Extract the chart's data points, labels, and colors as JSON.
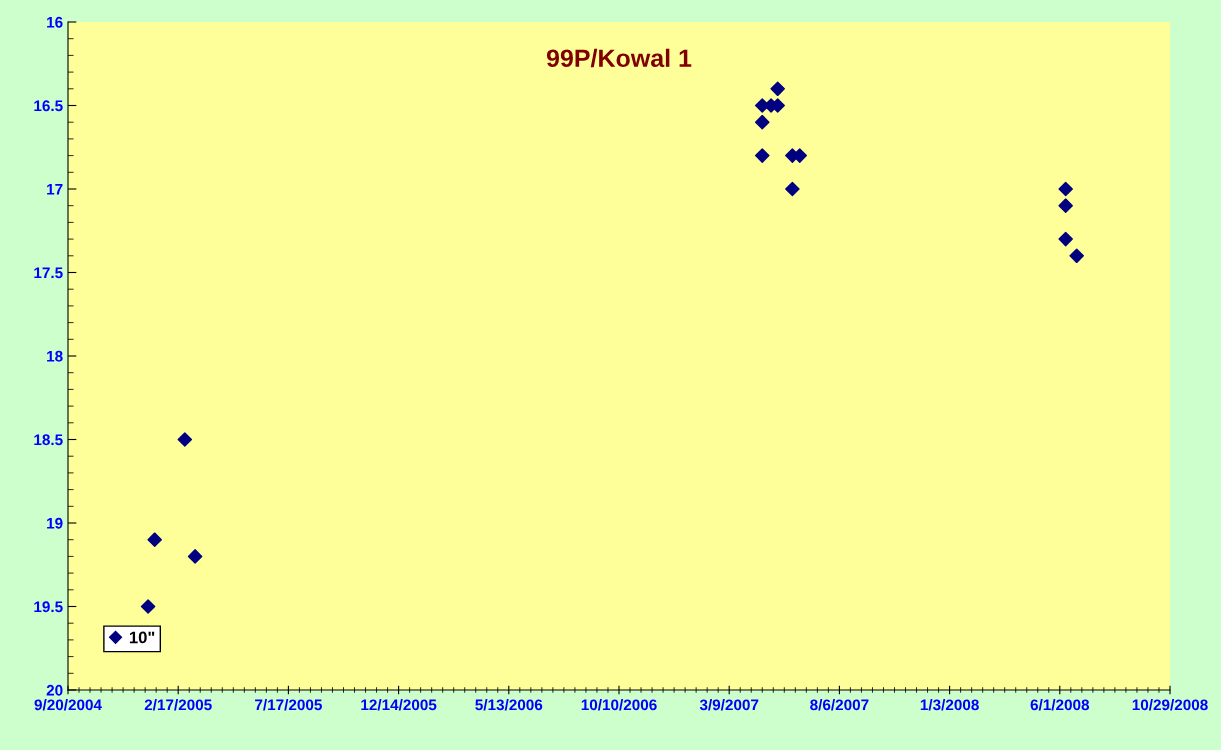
{
  "chart_data": {
    "type": "scatter",
    "title": "99P/Kowal 1",
    "series": [
      {
        "name": "10\"",
        "color": "#000080",
        "x": [
          "2005-01-07",
          "2005-01-16",
          "2005-02-26",
          "2005-03-12",
          "2007-04-23",
          "2007-04-23",
          "2007-04-23",
          "2007-05-05",
          "2007-05-14",
          "2007-05-14",
          "2007-06-03",
          "2007-06-03",
          "2007-06-13",
          "2008-06-09",
          "2008-06-09",
          "2008-06-09",
          "2008-06-24"
        ],
        "values": [
          19.5,
          19.1,
          18.5,
          19.2,
          16.5,
          16.6,
          16.8,
          16.5,
          16.4,
          16.5,
          16.8,
          17,
          16.8,
          17,
          17.1,
          17.3,
          17.4
        ]
      }
    ],
    "marker": "diamond",
    "xlim": [
      "2004-09-20",
      "2008-10-29"
    ],
    "xticks": [
      {
        "value": "2004-09-20",
        "label": "9/20/2004"
      },
      {
        "value": "2005-02-17",
        "label": "2/17/2005"
      },
      {
        "value": "2005-07-17",
        "label": "7/17/2005"
      },
      {
        "value": "2005-12-14",
        "label": "12/14/2005"
      },
      {
        "value": "2006-05-13",
        "label": "5/13/2006"
      },
      {
        "value": "2006-10-10",
        "label": "10/10/2006"
      },
      {
        "value": "2007-03-09",
        "label": "3/9/2007"
      },
      {
        "value": "2007-08-06",
        "label": "8/6/2007"
      },
      {
        "value": "2008-01-03",
        "label": "1/3/2008"
      },
      {
        "value": "2008-06-01",
        "label": "6/1/2008"
      },
      {
        "value": "2008-10-29",
        "label": "10/29/2008"
      }
    ],
    "ylim": [
      20,
      16
    ],
    "yticks": [
      16,
      16.5,
      17,
      17.5,
      18,
      18.5,
      19,
      19.5,
      20
    ],
    "grid": false,
    "legend": "bottom left"
  }
}
